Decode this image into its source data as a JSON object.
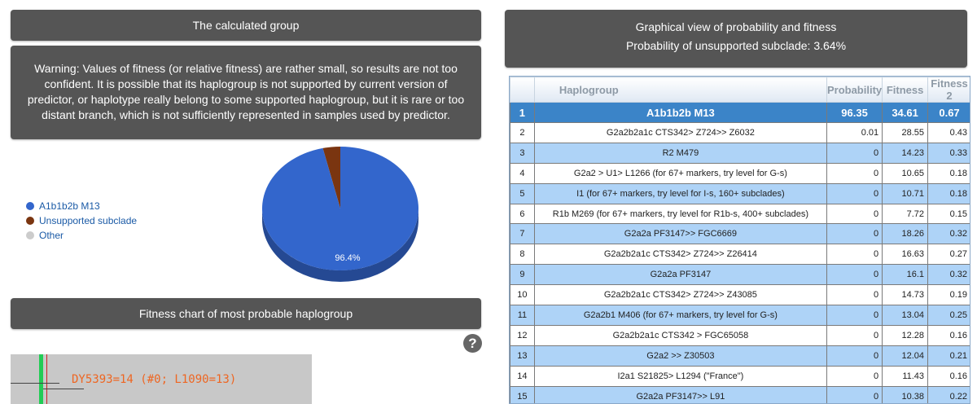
{
  "left": {
    "calc_title": "The calculated group",
    "warning": "Warning: Values of fitness (or relative fitness) are rather small, so results are not too confident. It is possible that its haplogroup is not supported by current version of predictor, or haplotype really belong to some supported haplogroup, but it is rare or too distant branch, which is not sufficiently represented in samples used by predictor.",
    "fitness_chart_title": "Fitness chart of most probable haplogroup",
    "help_glyph": "?",
    "fitness_chart_label": "DY5393=14 (#0; L1090=13)"
  },
  "legend": [
    {
      "label": "A1b1b2b M13",
      "color": "#3366cc"
    },
    {
      "label": "Unsupported subclade",
      "color": "#7a3510"
    },
    {
      "label": "Other",
      "color": "#cccccc"
    }
  ],
  "pie": {
    "slices": [
      {
        "label": "A1b1b2b M13",
        "value": 96.4,
        "color": "#3366cc"
      },
      {
        "label": "Unsupported subclade",
        "value": 3.6,
        "color": "#7a3510"
      }
    ],
    "main_label": "96.4%"
  },
  "right": {
    "graph_title": "Graphical view of probability and fitness",
    "graph_subtitle": "Probability of unsupported subclade: 3.64%"
  },
  "table": {
    "headers": [
      "Haplogroup",
      "Probability",
      "Fitness",
      "Fitness 2"
    ],
    "rows": [
      {
        "idx": "1",
        "hap": "A1b1b2b M13",
        "prob": "96.35",
        "fit": "34.61",
        "fit2": "0.67"
      },
      {
        "idx": "2",
        "hap": "G2a2b2a1c CTS342> Z724>> Z6032",
        "prob": "0.01",
        "fit": "28.55",
        "fit2": "0.43"
      },
      {
        "idx": "3",
        "hap": "R2 M479",
        "prob": "0",
        "fit": "14.23",
        "fit2": "0.33"
      },
      {
        "idx": "4",
        "hap": "G2a2 > U1> L1266 (for 67+ markers, try level for G-s)",
        "prob": "0",
        "fit": "10.65",
        "fit2": "0.18"
      },
      {
        "idx": "5",
        "hap": "I1 (for 67+ markers, try level for I-s, 160+ subclades)",
        "prob": "0",
        "fit": "10.71",
        "fit2": "0.18"
      },
      {
        "idx": "6",
        "hap": "R1b M269 (for 67+ markers, try level for R1b-s, 400+ subclades)",
        "prob": "0",
        "fit": "7.72",
        "fit2": "0.15"
      },
      {
        "idx": "7",
        "hap": "G2a2a PF3147>> FGC6669",
        "prob": "0",
        "fit": "18.26",
        "fit2": "0.32"
      },
      {
        "idx": "8",
        "hap": "G2a2b2a1c CTS342> Z724>> Z26414",
        "prob": "0",
        "fit": "16.63",
        "fit2": "0.27"
      },
      {
        "idx": "9",
        "hap": "G2a2a PF3147",
        "prob": "0",
        "fit": "16.1",
        "fit2": "0.32"
      },
      {
        "idx": "10",
        "hap": "G2a2b2a1c CTS342> Z724>> Z43085",
        "prob": "0",
        "fit": "14.73",
        "fit2": "0.19"
      },
      {
        "idx": "11",
        "hap": "G2a2b1 M406 (for 67+ markers, try level for G-s)",
        "prob": "0",
        "fit": "13.04",
        "fit2": "0.25"
      },
      {
        "idx": "12",
        "hap": "G2a2b2a1c CTS342 > FGC65058",
        "prob": "0",
        "fit": "12.28",
        "fit2": "0.16"
      },
      {
        "idx": "13",
        "hap": "G2a2 >> Z30503",
        "prob": "0",
        "fit": "12.04",
        "fit2": "0.21"
      },
      {
        "idx": "14",
        "hap": "I2a1 S21825> L1294 (\"France\")",
        "prob": "0",
        "fit": "11.43",
        "fit2": "0.16"
      },
      {
        "idx": "15",
        "hap": "G2a2a PF3147>> L91",
        "prob": "0",
        "fit": "10.38",
        "fit2": "0.22"
      }
    ]
  }
}
